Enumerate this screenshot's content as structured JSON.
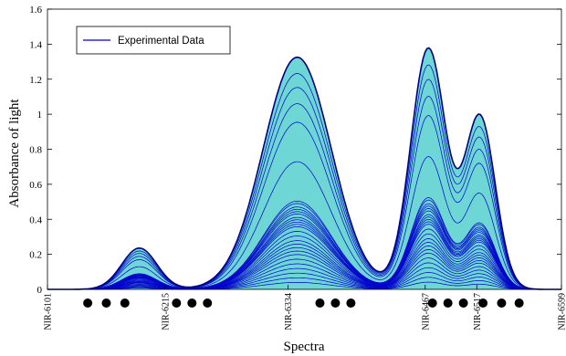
{
  "chart_data": {
    "type": "line",
    "title": "",
    "xlabel": "Spectra",
    "ylabel": "Absorbance of light",
    "ylim": [
      0,
      1.6
    ],
    "y_ticks": [
      "0",
      "0.2",
      "0.4",
      "0.6",
      "0.8",
      "1",
      "1.2",
      "1.4",
      "1.6"
    ],
    "x_ticks": [
      "NIR-6101",
      "NIR-6215",
      "NIR-6334",
      "NIR-6467",
      "NIR-6517",
      "NIR-6599"
    ],
    "x_tick_values": [
      6101,
      6215,
      6334,
      6467,
      6517,
      6599
    ],
    "xlim": [
      6101,
      6599
    ],
    "grid": false,
    "legend": {
      "entries": [
        "Experimental Data"
      ],
      "position": "top-left"
    },
    "series_color": "#0000cc",
    "fill_color": "#6fd6d6",
    "envelope_color": "#000080",
    "band_peaks": [
      {
        "center": 6190,
        "width": 17,
        "max_absorbance": 0.24
      },
      {
        "center": 6343,
        "width": 33,
        "max_absorbance": 1.35
      },
      {
        "center": 6470,
        "width": 17,
        "max_absorbance": 1.4
      },
      {
        "center": 6520,
        "width": 15,
        "max_absorbance": 1.0
      }
    ],
    "dot_groups": [
      {
        "x": [
          6140,
          6158,
          6176
        ]
      },
      {
        "x": [
          6226,
          6241,
          6256
        ]
      },
      {
        "x": [
          6365,
          6380,
          6395
        ]
      },
      {
        "x": [
          6474,
          6489,
          6504,
          6523,
          6541,
          6558
        ]
      }
    ],
    "curve_scale_factors": [
      1.0,
      0.93,
      0.87,
      0.8,
      0.72,
      0.55,
      0.38,
      0.37,
      0.355,
      0.345,
      0.335,
      0.325,
      0.31,
      0.3,
      0.29,
      0.28,
      0.27,
      0.25,
      0.23,
      0.21,
      0.195,
      0.18,
      0.165,
      0.15,
      0.13,
      0.11,
      0.09,
      0.07,
      0.05,
      0.03
    ]
  }
}
